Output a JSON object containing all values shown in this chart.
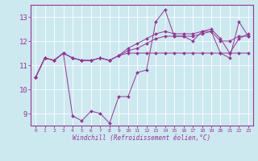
{
  "xlabel": "Windchill (Refroidissement éolien,°C)",
  "ylabel": "",
  "background_color": "#cce9f0",
  "line_color": "#993399",
  "xlim": [
    -0.5,
    23.5
  ],
  "ylim": [
    8.5,
    13.5
  ],
  "yticks": [
    9,
    10,
    11,
    12,
    13
  ],
  "xticks": [
    0,
    1,
    2,
    3,
    4,
    5,
    6,
    7,
    8,
    9,
    10,
    11,
    12,
    13,
    14,
    15,
    16,
    17,
    18,
    19,
    20,
    21,
    22,
    23
  ],
  "series": [
    [
      10.5,
      11.3,
      11.2,
      11.5,
      8.9,
      8.7,
      9.1,
      9.0,
      8.6,
      9.7,
      9.7,
      10.7,
      10.8,
      12.8,
      13.3,
      12.2,
      12.2,
      12.0,
      12.4,
      12.4,
      11.5,
      11.3,
      12.8,
      12.2
    ],
    [
      10.5,
      11.3,
      11.2,
      11.5,
      11.3,
      11.2,
      11.2,
      11.3,
      11.2,
      11.4,
      11.6,
      11.7,
      11.9,
      12.1,
      12.2,
      12.2,
      12.2,
      12.2,
      12.3,
      12.4,
      12.0,
      12.0,
      12.2,
      12.2
    ],
    [
      10.5,
      11.3,
      11.2,
      11.5,
      11.3,
      11.2,
      11.2,
      11.3,
      11.2,
      11.4,
      11.7,
      11.9,
      12.1,
      12.3,
      12.4,
      12.3,
      12.3,
      12.3,
      12.4,
      12.5,
      12.1,
      11.5,
      12.1,
      12.3
    ],
    [
      10.5,
      11.3,
      11.2,
      11.5,
      11.3,
      11.2,
      11.2,
      11.3,
      11.2,
      11.4,
      11.5,
      11.5,
      11.5,
      11.5,
      11.5,
      11.5,
      11.5,
      11.5,
      11.5,
      11.5,
      11.5,
      11.5,
      11.5,
      11.5
    ]
  ],
  "figsize": [
    3.2,
    2.0
  ],
  "dpi": 100
}
